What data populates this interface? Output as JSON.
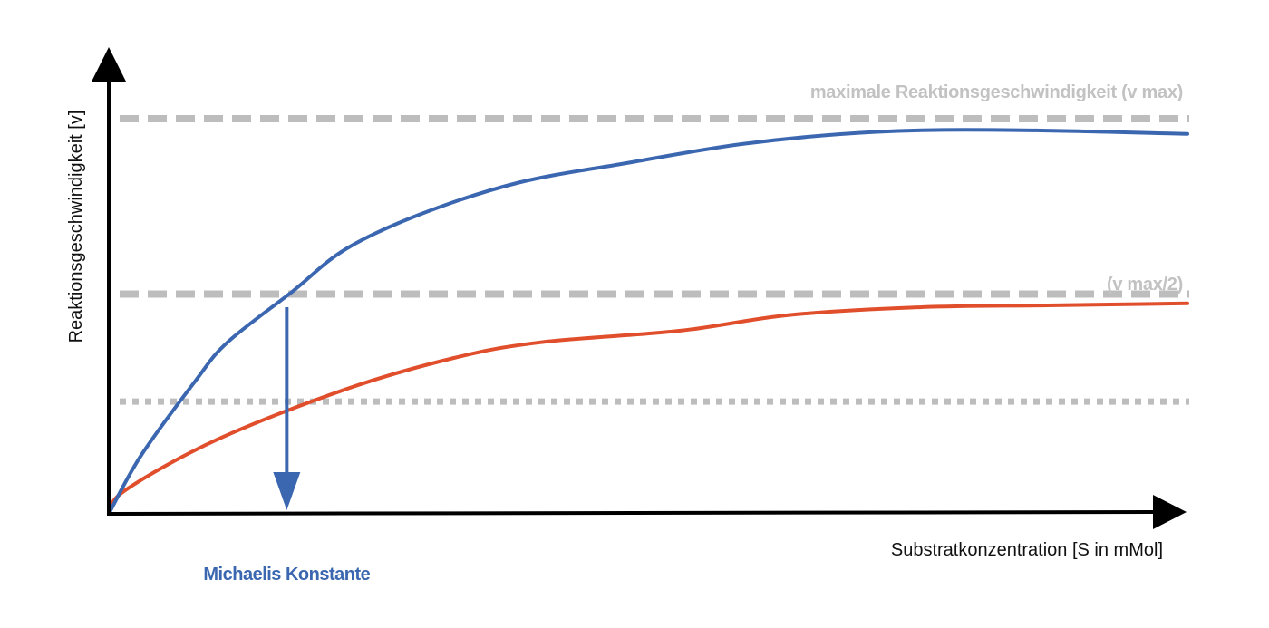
{
  "chart_data": {
    "type": "line",
    "xlabel": "Substratkonzentration [S in mMol]",
    "ylabel": "Reaktionsgeschwindigkeit [v]",
    "xlim": [
      0,
      100
    ],
    "ylim": [
      0,
      100
    ],
    "grid": false,
    "reference_lines": [
      {
        "label": "maximale Reaktionsgeschwindigkeit (v max)",
        "y": 100,
        "style": "dashed"
      },
      {
        "label": "(v max/2)",
        "y": 55,
        "style": "dashed"
      },
      {
        "label": "",
        "y": 27.4,
        "style": "dotted"
      }
    ],
    "series": [
      {
        "color": "#3b66b0",
        "x": [
          0,
          3,
          8,
          11,
          17,
          22,
          29,
          38,
          48,
          59,
          71,
          83,
          100
        ],
        "y": [
          0,
          15,
          34,
          44,
          57,
          68,
          77,
          85,
          90,
          95,
          98,
          98.5,
          97.5
        ]
      },
      {
        "color": "#e04e2c",
        "x": [
          0,
          1.5,
          10,
          22,
          32,
          40,
          53,
          63,
          75,
          87,
          100
        ],
        "y": [
          0,
          6,
          19,
          32,
          40,
          44,
          47,
          51,
          53,
          53.5,
          54
        ]
      }
    ],
    "annotations": [
      {
        "label": "Michaelis Konstante",
        "x": 16.5,
        "color": "#3b66b0"
      }
    ],
    "colors": {
      "axis": "#000000",
      "reference": "#bdbdbd",
      "reference_label": "#c2c2c2",
      "annotation": "#3b66b0"
    }
  }
}
